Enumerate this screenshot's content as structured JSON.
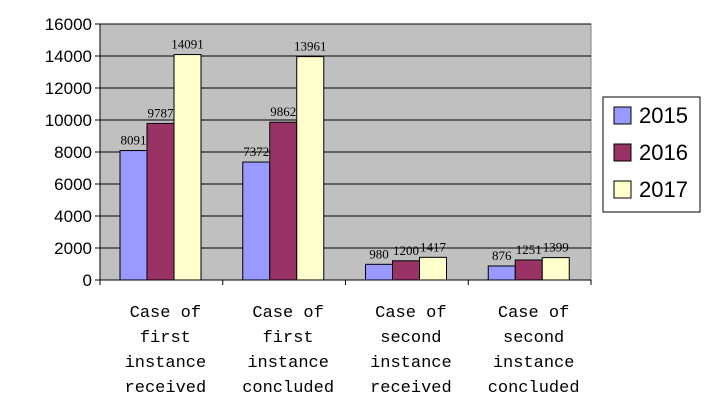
{
  "chart_data": {
    "type": "bar",
    "title": "",
    "xlabel": "",
    "ylabel": "",
    "ylim": [
      0,
      16000
    ],
    "yticks": [
      0,
      2000,
      4000,
      6000,
      8000,
      10000,
      12000,
      14000,
      16000
    ],
    "grid": true,
    "legend_position": "right",
    "categories": [
      [
        "Case of",
        "first",
        "instance",
        "received"
      ],
      [
        "Case of",
        "first",
        "instance",
        "concluded"
      ],
      [
        "Case of",
        "second",
        "instance",
        "received"
      ],
      [
        "Case of",
        "second",
        "instance",
        "concluded"
      ]
    ],
    "series": [
      {
        "name": "2015",
        "color": "#9999ff",
        "values": [
          8091,
          7372,
          980,
          876
        ]
      },
      {
        "name": "2016",
        "color": "#993366",
        "values": [
          9787,
          9862,
          1200,
          1251
        ]
      },
      {
        "name": "2017",
        "color": "#ffffcc",
        "values": [
          14091,
          13961,
          1417,
          1399
        ]
      }
    ],
    "plot_background": "#c0c0c0"
  }
}
